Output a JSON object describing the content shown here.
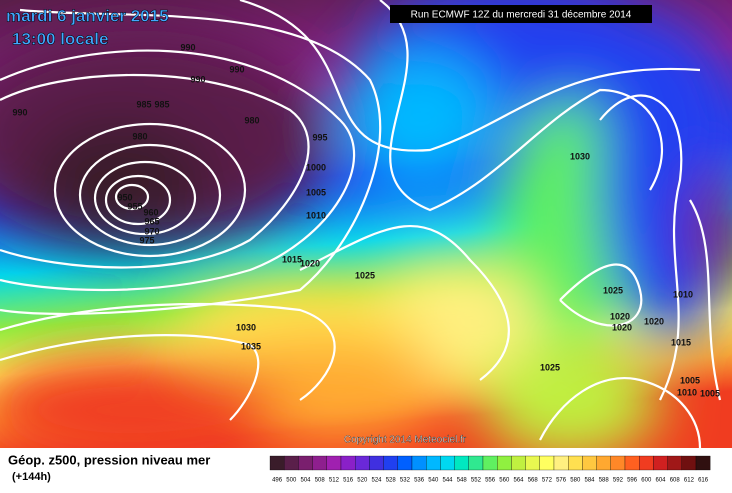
{
  "header": {
    "date": "mardi 6 janvier 2015",
    "time": "13:00 locale",
    "run": "Run ECMWF 12Z du mercredi 31 décembre 2014"
  },
  "map": {
    "copyright": "Copyright 2014 Meteociel.fr",
    "isobar_labels": [
      990,
      990,
      990,
      990,
      985,
      985,
      980,
      980,
      995,
      1000,
      1005,
      1010,
      1015,
      1020,
      1025,
      1030,
      1035,
      1030,
      1025,
      1010,
      1020,
      1020,
      1020,
      1015,
      1025,
      1005,
      1010,
      1005,
      950,
      955,
      960,
      965,
      970,
      975
    ]
  },
  "footer": {
    "title": "Géop. z500, pression niveau mer",
    "lead": "(+144h)",
    "legend": {
      "levels": [
        496,
        500,
        504,
        508,
        512,
        516,
        520,
        524,
        528,
        532,
        536,
        540,
        544,
        548,
        552,
        556,
        560,
        564,
        568,
        572,
        576,
        580,
        584,
        588,
        592,
        596,
        600,
        604,
        608,
        612,
        616
      ],
      "colors": [
        "#3a1c2a",
        "#5a1f4a",
        "#7a1f6e",
        "#8e1f8e",
        "#a020b0",
        "#8a20c8",
        "#6a28d8",
        "#4030e0",
        "#2040f0",
        "#0060ff",
        "#0090ff",
        "#00b8ff",
        "#00d8f0",
        "#00e8c0",
        "#30e890",
        "#60f060",
        "#90f040",
        "#c0f040",
        "#e8f850",
        "#ffff60",
        "#fff080",
        "#ffe050",
        "#ffc840",
        "#ffa830",
        "#ff8828",
        "#ff6020",
        "#f03c20",
        "#d02020",
        "#a01818",
        "#701010",
        "#301010"
      ]
    }
  }
}
